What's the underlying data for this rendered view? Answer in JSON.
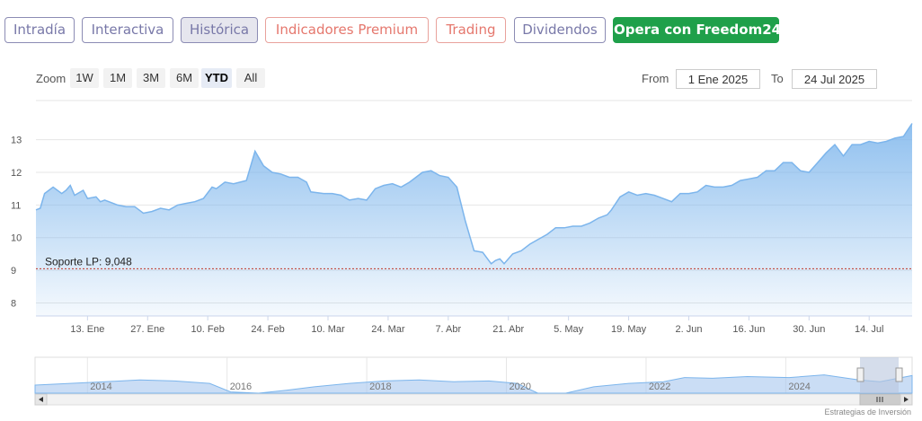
{
  "tabs": [
    {
      "label": "Intradía",
      "style": "normal"
    },
    {
      "label": "Interactiva",
      "style": "normal"
    },
    {
      "label": "Histórica",
      "style": "active"
    },
    {
      "label": "Indicadores Premium",
      "style": "orange"
    },
    {
      "label": "Trading",
      "style": "orange"
    },
    {
      "label": "Dividendos",
      "style": "normal"
    },
    {
      "label": "Opera con Freedom24",
      "style": "green"
    }
  ],
  "zoom": {
    "label": "Zoom",
    "buttons": [
      "1W",
      "1M",
      "3M",
      "6M",
      "YTD",
      "All"
    ],
    "active": "YTD"
  },
  "range": {
    "from_label": "From",
    "from_value": "1 Ene 2025",
    "to_label": "To",
    "to_value": "24 Jul 2025"
  },
  "credit": "Estrategias de Inversión",
  "colors": {
    "line": "#7cb5ec",
    "support": "#c0392b",
    "navigator_mask": "#b9c6de"
  },
  "chart_data": {
    "type": "area",
    "title": "",
    "xlabel": "",
    "ylabel": "",
    "ylim": [
      7.6,
      14.2
    ],
    "yticks": [
      8,
      9,
      10,
      11,
      12,
      13
    ],
    "xlim": [
      "2025-01-01",
      "2025-07-24"
    ],
    "xticks": [
      {
        "date": "2025-01-13",
        "label": "13. Ene"
      },
      {
        "date": "2025-01-27",
        "label": "27. Ene"
      },
      {
        "date": "2025-02-10",
        "label": "10. Feb"
      },
      {
        "date": "2025-02-24",
        "label": "24. Feb"
      },
      {
        "date": "2025-03-10",
        "label": "10. Mar"
      },
      {
        "date": "2025-03-24",
        "label": "24. Mar"
      },
      {
        "date": "2025-04-07",
        "label": "7. Abr"
      },
      {
        "date": "2025-04-21",
        "label": "21. Abr"
      },
      {
        "date": "2025-05-05",
        "label": "5. May"
      },
      {
        "date": "2025-05-19",
        "label": "19. May"
      },
      {
        "date": "2025-06-02",
        "label": "2. Jun"
      },
      {
        "date": "2025-06-16",
        "label": "16. Jun"
      },
      {
        "date": "2025-06-30",
        "label": "30. Jun"
      },
      {
        "date": "2025-07-14",
        "label": "14. Jul"
      }
    ],
    "grid": true,
    "annotations": [
      {
        "type": "hline",
        "y": 9.048,
        "label": "Soporte LP: 9,048"
      }
    ],
    "series": [
      {
        "points": [
          [
            "2025-01-01",
            10.85
          ],
          [
            "2025-01-02",
            10.9
          ],
          [
            "2025-01-03",
            11.35
          ],
          [
            "2025-01-05",
            11.55
          ],
          [
            "2025-01-07",
            11.35
          ],
          [
            "2025-01-08",
            11.45
          ],
          [
            "2025-01-09",
            11.6
          ],
          [
            "2025-01-10",
            11.3
          ],
          [
            "2025-01-12",
            11.45
          ],
          [
            "2025-01-13",
            11.2
          ],
          [
            "2025-01-15",
            11.25
          ],
          [
            "2025-01-16",
            11.1
          ],
          [
            "2025-01-17",
            11.15
          ],
          [
            "2025-01-20",
            11.0
          ],
          [
            "2025-01-22",
            10.95
          ],
          [
            "2025-01-24",
            10.95
          ],
          [
            "2025-01-26",
            10.75
          ],
          [
            "2025-01-28",
            10.8
          ],
          [
            "2025-01-30",
            10.9
          ],
          [
            "2025-02-01",
            10.85
          ],
          [
            "2025-02-03",
            11.0
          ],
          [
            "2025-02-05",
            11.05
          ],
          [
            "2025-02-07",
            11.1
          ],
          [
            "2025-02-09",
            11.2
          ],
          [
            "2025-02-11",
            11.55
          ],
          [
            "2025-02-12",
            11.5
          ],
          [
            "2025-02-14",
            11.7
          ],
          [
            "2025-02-16",
            11.65
          ],
          [
            "2025-02-19",
            11.75
          ],
          [
            "2025-02-21",
            12.65
          ],
          [
            "2025-02-23",
            12.2
          ],
          [
            "2025-02-25",
            12.0
          ],
          [
            "2025-02-27",
            11.95
          ],
          [
            "2025-03-01",
            11.85
          ],
          [
            "2025-03-03",
            11.85
          ],
          [
            "2025-03-05",
            11.7
          ],
          [
            "2025-03-06",
            11.4
          ],
          [
            "2025-03-09",
            11.35
          ],
          [
            "2025-03-11",
            11.35
          ],
          [
            "2025-03-13",
            11.3
          ],
          [
            "2025-03-15",
            11.15
          ],
          [
            "2025-03-17",
            11.2
          ],
          [
            "2025-03-19",
            11.15
          ],
          [
            "2025-03-21",
            11.5
          ],
          [
            "2025-03-23",
            11.6
          ],
          [
            "2025-03-25",
            11.65
          ],
          [
            "2025-03-27",
            11.55
          ],
          [
            "2025-03-29",
            11.7
          ],
          [
            "2025-04-01",
            12.0
          ],
          [
            "2025-04-03",
            12.05
          ],
          [
            "2025-04-05",
            11.9
          ],
          [
            "2025-04-07",
            11.85
          ],
          [
            "2025-04-09",
            11.55
          ],
          [
            "2025-04-11",
            10.5
          ],
          [
            "2025-04-13",
            9.6
          ],
          [
            "2025-04-15",
            9.55
          ],
          [
            "2025-04-17",
            9.2
          ],
          [
            "2025-04-18",
            9.3
          ],
          [
            "2025-04-19",
            9.35
          ],
          [
            "2025-04-20",
            9.2
          ],
          [
            "2025-04-22",
            9.5
          ],
          [
            "2025-04-24",
            9.6
          ],
          [
            "2025-04-26",
            9.8
          ],
          [
            "2025-04-28",
            9.95
          ],
          [
            "2025-04-30",
            10.1
          ],
          [
            "2025-05-02",
            10.3
          ],
          [
            "2025-05-04",
            10.3
          ],
          [
            "2025-05-06",
            10.35
          ],
          [
            "2025-05-08",
            10.35
          ],
          [
            "2025-05-10",
            10.45
          ],
          [
            "2025-05-12",
            10.6
          ],
          [
            "2025-05-14",
            10.7
          ],
          [
            "2025-05-15",
            10.85
          ],
          [
            "2025-05-17",
            11.25
          ],
          [
            "2025-05-19",
            11.4
          ],
          [
            "2025-05-21",
            11.3
          ],
          [
            "2025-05-23",
            11.35
          ],
          [
            "2025-05-25",
            11.3
          ],
          [
            "2025-05-27",
            11.2
          ],
          [
            "2025-05-29",
            11.1
          ],
          [
            "2025-05-31",
            11.35
          ],
          [
            "2025-06-02",
            11.35
          ],
          [
            "2025-06-04",
            11.4
          ],
          [
            "2025-06-06",
            11.6
          ],
          [
            "2025-06-08",
            11.55
          ],
          [
            "2025-06-10",
            11.55
          ],
          [
            "2025-06-12",
            11.6
          ],
          [
            "2025-06-14",
            11.75
          ],
          [
            "2025-06-16",
            11.8
          ],
          [
            "2025-06-18",
            11.85
          ],
          [
            "2025-06-20",
            12.05
          ],
          [
            "2025-06-22",
            12.05
          ],
          [
            "2025-06-24",
            12.3
          ],
          [
            "2025-06-26",
            12.3
          ],
          [
            "2025-06-28",
            12.05
          ],
          [
            "2025-06-30",
            12.0
          ],
          [
            "2025-07-02",
            12.3
          ],
          [
            "2025-07-04",
            12.6
          ],
          [
            "2025-07-06",
            12.85
          ],
          [
            "2025-07-08",
            12.5
          ],
          [
            "2025-07-10",
            12.85
          ],
          [
            "2025-07-12",
            12.85
          ],
          [
            "2025-07-14",
            12.95
          ],
          [
            "2025-07-16",
            12.9
          ],
          [
            "2025-07-18",
            12.95
          ],
          [
            "2025-07-20",
            13.05
          ],
          [
            "2025-07-22",
            13.1
          ],
          [
            "2025-07-23",
            13.3
          ],
          [
            "2025-07-24",
            13.5
          ]
        ]
      }
    ],
    "navigator": {
      "xticks": [
        "2014",
        "2016",
        "2018",
        "2020",
        "2022",
        "2024"
      ],
      "points": [
        [
          2013.0,
          0.5
        ],
        [
          2013.5,
          0.55
        ],
        [
          2014.0,
          0.6
        ],
        [
          2014.5,
          0.65
        ],
        [
          2015.0,
          0.62
        ],
        [
          2015.5,
          0.55
        ],
        [
          2015.8,
          0.3
        ],
        [
          2016.2,
          0.25
        ],
        [
          2016.6,
          0.35
        ],
        [
          2017.0,
          0.45
        ],
        [
          2017.5,
          0.55
        ],
        [
          2018.0,
          0.62
        ],
        [
          2018.5,
          0.65
        ],
        [
          2019.0,
          0.6
        ],
        [
          2019.5,
          0.62
        ],
        [
          2019.9,
          0.55
        ],
        [
          2020.2,
          0.25
        ],
        [
          2020.6,
          0.2
        ],
        [
          2021.0,
          0.45
        ],
        [
          2021.5,
          0.55
        ],
        [
          2022.0,
          0.6
        ],
        [
          2022.3,
          0.72
        ],
        [
          2022.7,
          0.7
        ],
        [
          2023.2,
          0.75
        ],
        [
          2023.8,
          0.72
        ],
        [
          2024.3,
          0.8
        ],
        [
          2024.8,
          0.65
        ],
        [
          2025.1,
          0.6
        ],
        [
          2025.56,
          0.78
        ]
      ]
    }
  }
}
